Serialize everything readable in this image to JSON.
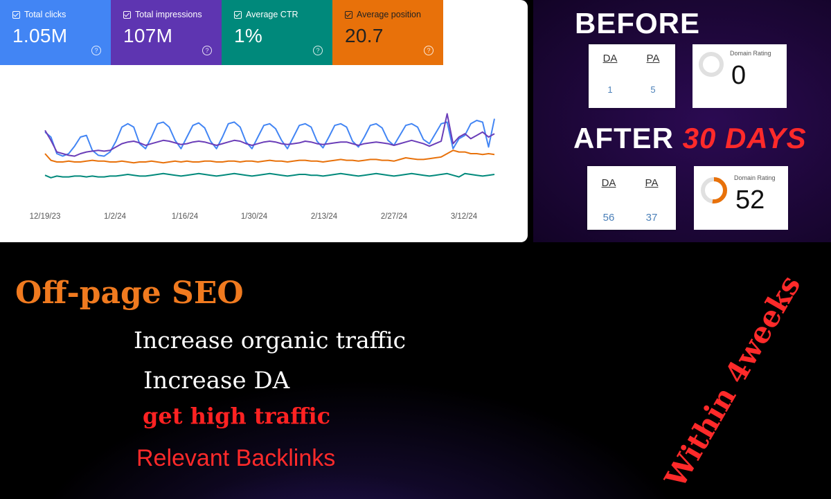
{
  "search_console": {
    "metrics": [
      {
        "label": "Total clicks",
        "value": "1.05M",
        "color": "#4285f4"
      },
      {
        "label": "Total impressions",
        "value": "107M",
        "color": "#5e35b1"
      },
      {
        "label": "Average CTR",
        "value": "1%",
        "color": "#00897b"
      },
      {
        "label": "Average position",
        "value": "20.7",
        "color": "#e8710a"
      }
    ],
    "x_ticks": [
      "12/19/23",
      "1/2/24",
      "1/16/24",
      "1/30/24",
      "2/13/24",
      "2/27/24",
      "3/12/24"
    ]
  },
  "chart_data": {
    "type": "line",
    "x_range": [
      "12/19/23",
      "3/19/24"
    ],
    "grid": false,
    "legend": "none",
    "series": [
      {
        "color": "#4285f4",
        "values": [
          66,
          60,
          40,
          37,
          40,
          49,
          60,
          62,
          44,
          38,
          37,
          42,
          55,
          72,
          76,
          72,
          52,
          46,
          60,
          76,
          78,
          72,
          56,
          46,
          60,
          74,
          77,
          71,
          55,
          46,
          60,
          76,
          78,
          72,
          54,
          46,
          60,
          74,
          76,
          70,
          56,
          46,
          60,
          74,
          76,
          72,
          55,
          47,
          60,
          74,
          76,
          72,
          55,
          48,
          60,
          74,
          76,
          71,
          56,
          50,
          62,
          74,
          76,
          72,
          57,
          52,
          64,
          76,
          78,
          46,
          58,
          62,
          76,
          80,
          78,
          48,
          82
        ]
      },
      {
        "color": "#6a3db8",
        "values": [
          68,
          56,
          42,
          40,
          38,
          37,
          40,
          42,
          43,
          44,
          43,
          44,
          48,
          52,
          54,
          55,
          53,
          50,
          52,
          54,
          56,
          55,
          53,
          51,
          52,
          54,
          55,
          54,
          52,
          50,
          52,
          54,
          56,
          55,
          52,
          50,
          52,
          54,
          55,
          54,
          52,
          51,
          52,
          53,
          55,
          54,
          52,
          51,
          52,
          53,
          54,
          54,
          52,
          50,
          52,
          53,
          54,
          53,
          52,
          50,
          52,
          54,
          56,
          54,
          52,
          49,
          52,
          55,
          88,
          52,
          60,
          64,
          58,
          62,
          66,
          60,
          64
        ]
      },
      {
        "color": "#e8710a",
        "values": [
          40,
          32,
          30,
          30,
          31,
          30,
          30,
          31,
          32,
          31,
          31,
          30,
          30,
          31,
          30,
          29,
          30,
          30,
          31,
          30,
          29,
          30,
          31,
          30,
          31,
          30,
          30,
          31,
          31,
          30,
          30,
          31,
          31,
          30,
          31,
          31,
          30,
          31,
          32,
          31,
          31,
          30,
          31,
          32,
          32,
          31,
          31,
          30,
          31,
          32,
          33,
          32,
          32,
          31,
          32,
          33,
          33,
          32,
          32,
          31,
          33,
          35,
          34,
          33,
          33,
          34,
          35,
          36,
          40,
          44,
          42,
          42,
          40,
          40,
          39,
          40,
          39
        ]
      },
      {
        "color": "#00897b",
        "values": [
          14,
          11,
          13,
          12,
          12,
          13,
          13,
          12,
          13,
          12,
          12,
          13,
          13,
          14,
          15,
          14,
          13,
          13,
          14,
          15,
          16,
          15,
          14,
          13,
          14,
          15,
          16,
          15,
          14,
          13,
          14,
          15,
          16,
          15,
          14,
          13,
          14,
          15,
          16,
          15,
          14,
          13,
          14,
          15,
          15,
          14,
          14,
          13,
          14,
          15,
          16,
          15,
          14,
          13,
          14,
          15,
          16,
          15,
          14,
          13,
          14,
          15,
          16,
          15,
          14,
          13,
          14,
          15,
          16,
          14,
          12,
          16,
          15,
          14,
          13,
          14,
          15
        ]
      }
    ]
  },
  "before_after": {
    "before_title": "BEFORE",
    "after_title": "AFTER",
    "after_highlight": "30 DAYS",
    "da_label": "DA",
    "pa_label": "PA",
    "domain_rating_label": "Domain Rating",
    "before": {
      "da": "1",
      "pa": "5",
      "dr": "0",
      "dr_fraction": 0
    },
    "after": {
      "da": "56",
      "pa": "37",
      "dr": "52",
      "dr_fraction": 0.52
    },
    "gauge_color": "#e8710a",
    "gauge_track_color": "#e0e0e0"
  },
  "banner": {
    "title": "Off-page SEO",
    "lines": [
      "Increase organic traffic",
      "Increase DA",
      "get high traffic",
      "Relevant Backlinks"
    ],
    "side_text": "Within 4weeks"
  }
}
